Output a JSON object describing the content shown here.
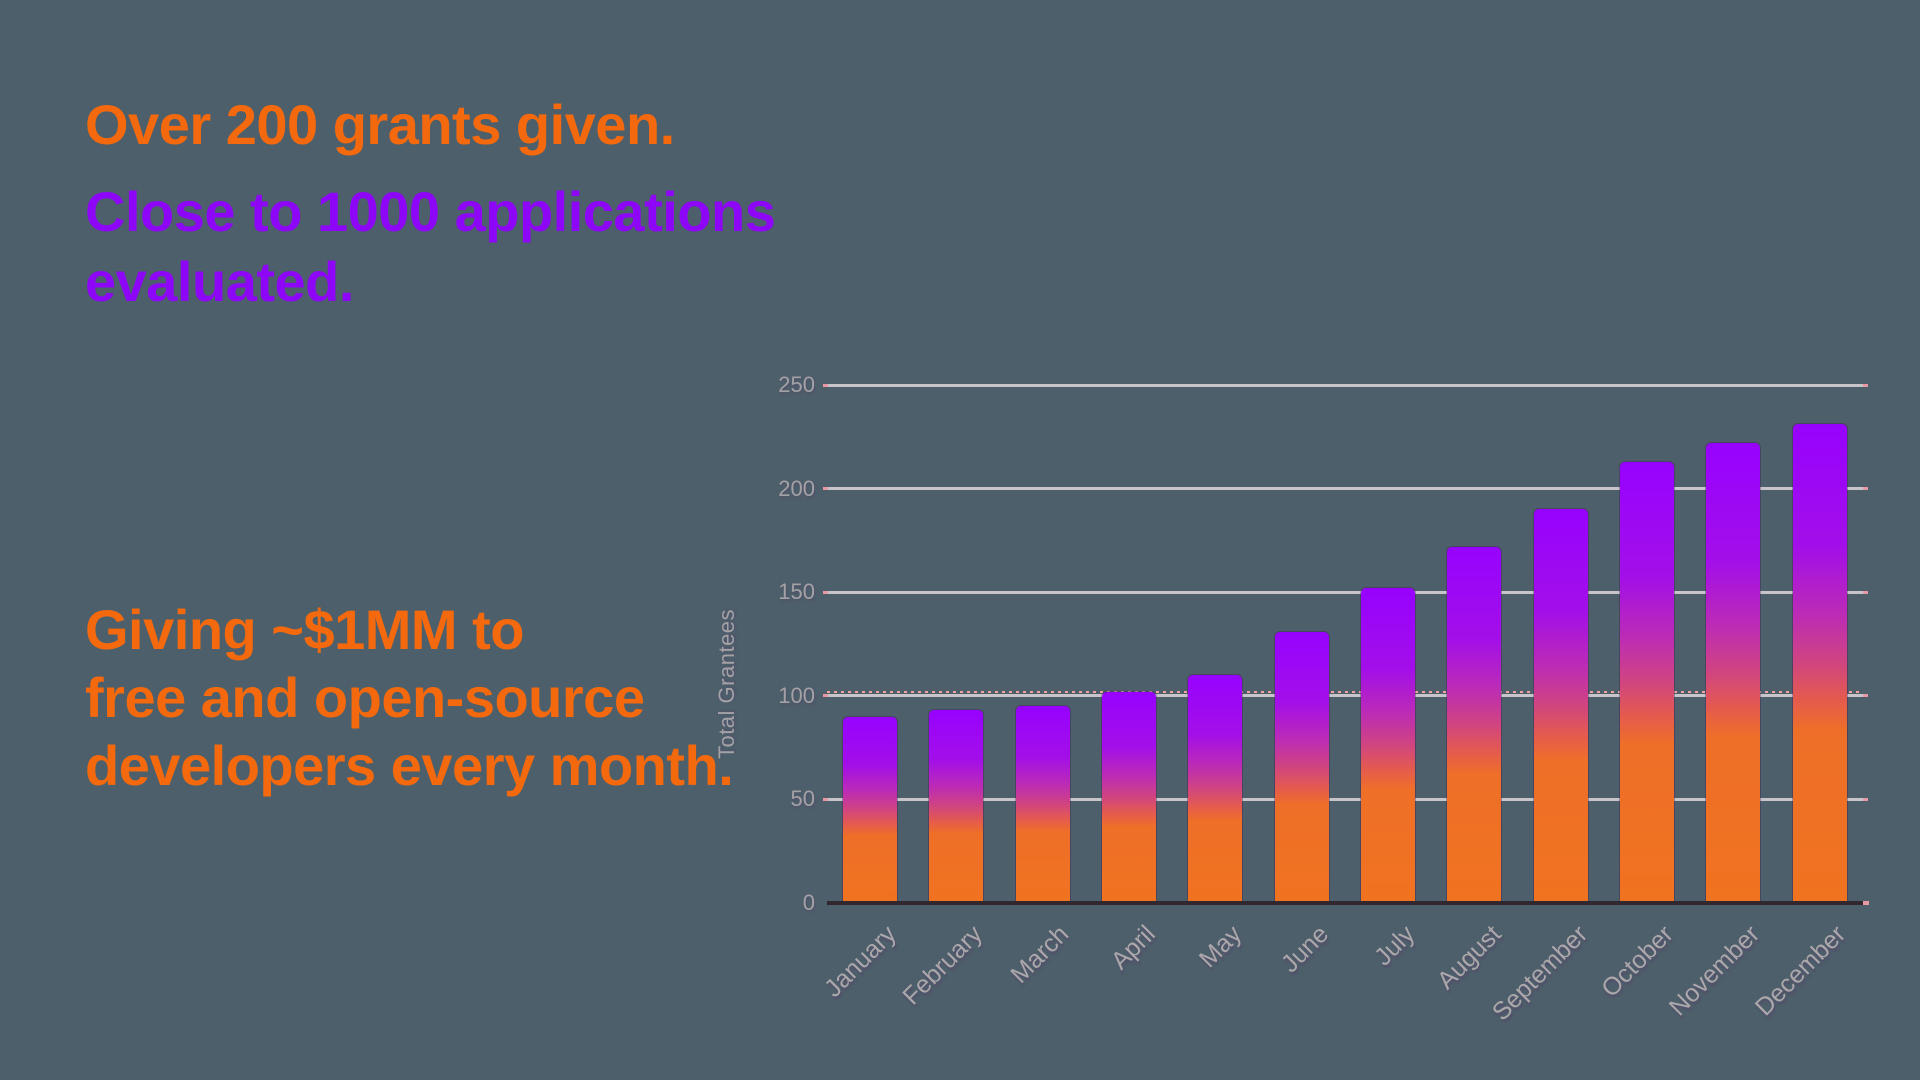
{
  "page": {
    "background": "#4D5F6A"
  },
  "headline": {
    "grants": "Over 200 grants given.",
    "applications": "Close to 1000 applications evaluated.",
    "grants_color": "#F4690E",
    "applications_color": "#8E06F8"
  },
  "message": {
    "line1": "Giving ~$1MM to",
    "line2": "free and open-source",
    "line3": "developers every month.",
    "color": "#F4690E"
  },
  "chart_data": {
    "type": "bar",
    "title": "",
    "xlabel": "",
    "ylabel": "Total Grantees",
    "categories": [
      "January",
      "February",
      "March",
      "April",
      "May",
      "June",
      "July",
      "August",
      "September",
      "October",
      "November",
      "December"
    ],
    "series": [
      {
        "name": "Total Grantees",
        "values": [
          90,
          93,
          95,
          102,
          110,
          131,
          152,
          172,
          190,
          213,
          222,
          231
        ]
      }
    ],
    "ylim": [
      0,
      250
    ],
    "yticks": [
      0,
      50,
      100,
      150,
      200,
      250
    ],
    "grid": true,
    "legend": false,
    "reference_line": {
      "y": 100,
      "style": "dashed",
      "color": "#EFA49F"
    },
    "bar_gradient_top": "#9702FF",
    "bar_gradient_mid": "#C42FA5",
    "bar_gradient_bottom": "#F07320",
    "gridline_color": "#C8C5CA",
    "axis_line_color": "#31272E",
    "tick_label_color": "#A4A1A6"
  }
}
